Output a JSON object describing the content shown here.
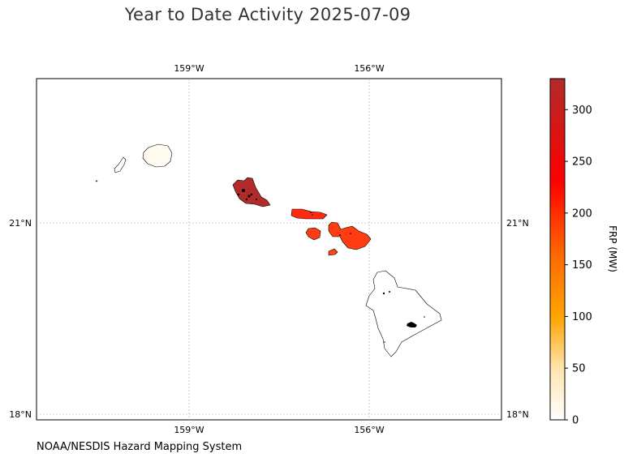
{
  "title": "Year to Date Activity 2025-07-09",
  "source": "NOAA/NESDIS Hazard Mapping System",
  "map": {
    "lon_range": [
      -161.55,
      -153.8
    ],
    "lat_range": [
      17.9,
      23.35
    ],
    "lon_ticks": [
      {
        "value": -159,
        "label": "159°W"
      },
      {
        "value": -156,
        "label": "156°W"
      }
    ],
    "lat_ticks": [
      {
        "value": 21,
        "label": "21°N"
      },
      {
        "value": 18,
        "label": "18°N"
      }
    ]
  },
  "regions": [
    {
      "name": "Niihau",
      "frp": 0,
      "color": "#ffffff"
    },
    {
      "name": "Kauai",
      "frp": 5,
      "color": "#fffaf0"
    },
    {
      "name": "Oahu",
      "frp": 330,
      "color": "#b22a2a"
    },
    {
      "name": "Molokai",
      "frp": 240,
      "color": "#ff2a10"
    },
    {
      "name": "Lanai",
      "frp": 225,
      "color": "#ff3c12"
    },
    {
      "name": "Maui",
      "frp": 225,
      "color": "#ff3c12"
    },
    {
      "name": "Kahoolawe",
      "frp": 215,
      "color": "#ff4514"
    },
    {
      "name": "Hawaii",
      "frp": 0,
      "color": "#ffffff"
    }
  ],
  "colorbar": {
    "label": "FRP (MW)",
    "min": 0,
    "max": 330,
    "ticks": [
      0,
      50,
      100,
      150,
      200,
      250,
      300
    ],
    "tick_labels": [
      "0",
      "50",
      "100",
      "150",
      "200",
      "250",
      "300"
    ],
    "stops": [
      {
        "value": 0,
        "color": "#ffffff"
      },
      {
        "value": 50,
        "color": "#ffe4b0"
      },
      {
        "value": 100,
        "color": "#ffa500"
      },
      {
        "value": 160,
        "color": "#ff6a00"
      },
      {
        "value": 230,
        "color": "#ff0000"
      },
      {
        "value": 330,
        "color": "#b22a2a"
      }
    ]
  }
}
